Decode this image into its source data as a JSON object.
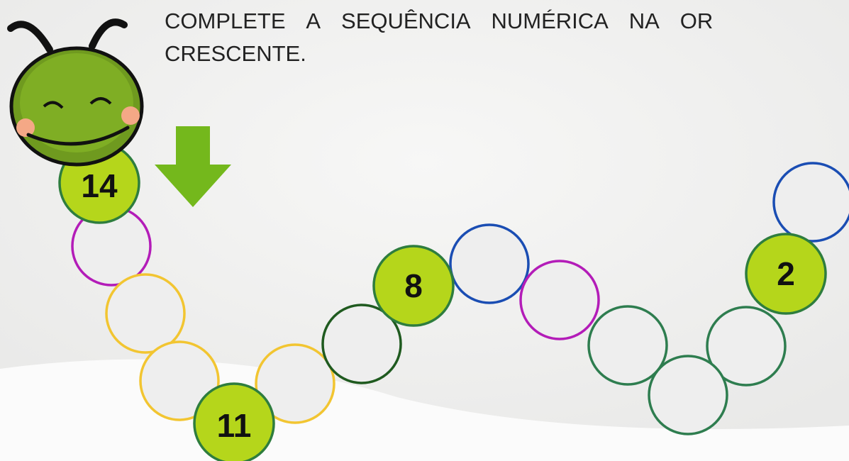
{
  "instruction": {
    "lines": [
      "COMPLETE A SEQUÊNCIA NUMÉRICA NA OR",
      "CRESCENTE."
    ]
  },
  "numbers": [
    "14",
    "11",
    "8",
    "2"
  ]
}
